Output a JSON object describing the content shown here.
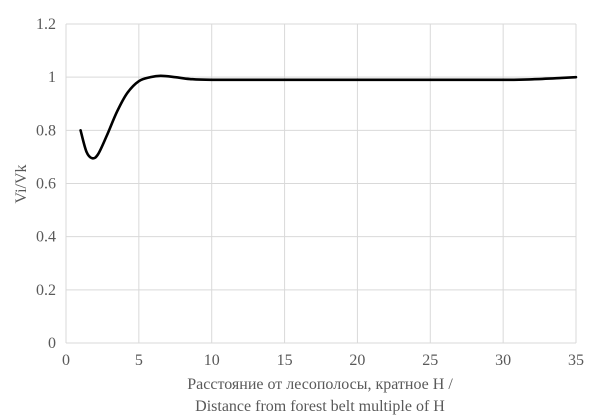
{
  "chart_data": {
    "type": "line",
    "title": "",
    "xlabel_line1": "Расстояние от лесополосы, кратное Н /",
    "xlabel_line2": "Distance from forest belt multiple of H",
    "ylabel": "Vi/Vk",
    "xlim": [
      0,
      35
    ],
    "ylim": [
      0,
      1.2
    ],
    "xticks": [
      "0",
      "5",
      "10",
      "15",
      "20",
      "25",
      "30",
      "35"
    ],
    "yticks": [
      "0",
      "0.2",
      "0.4",
      "0.6",
      "0.8",
      "1",
      "1.2"
    ],
    "grid": true,
    "legend": "none",
    "series": [
      {
        "color": "#000000",
        "x": [
          1,
          1.4,
          1.8,
          2.2,
          2.8,
          3.5,
          4.2,
          5,
          5.8,
          6.5,
          7.5,
          8.5,
          10,
          15,
          20,
          25,
          30,
          32,
          34,
          35
        ],
        "y": [
          0.8,
          0.72,
          0.695,
          0.71,
          0.78,
          0.87,
          0.94,
          0.985,
          1.0,
          1.005,
          1.0,
          0.993,
          0.99,
          0.99,
          0.99,
          0.99,
          0.99,
          0.992,
          0.997,
          1.0
        ]
      }
    ]
  }
}
